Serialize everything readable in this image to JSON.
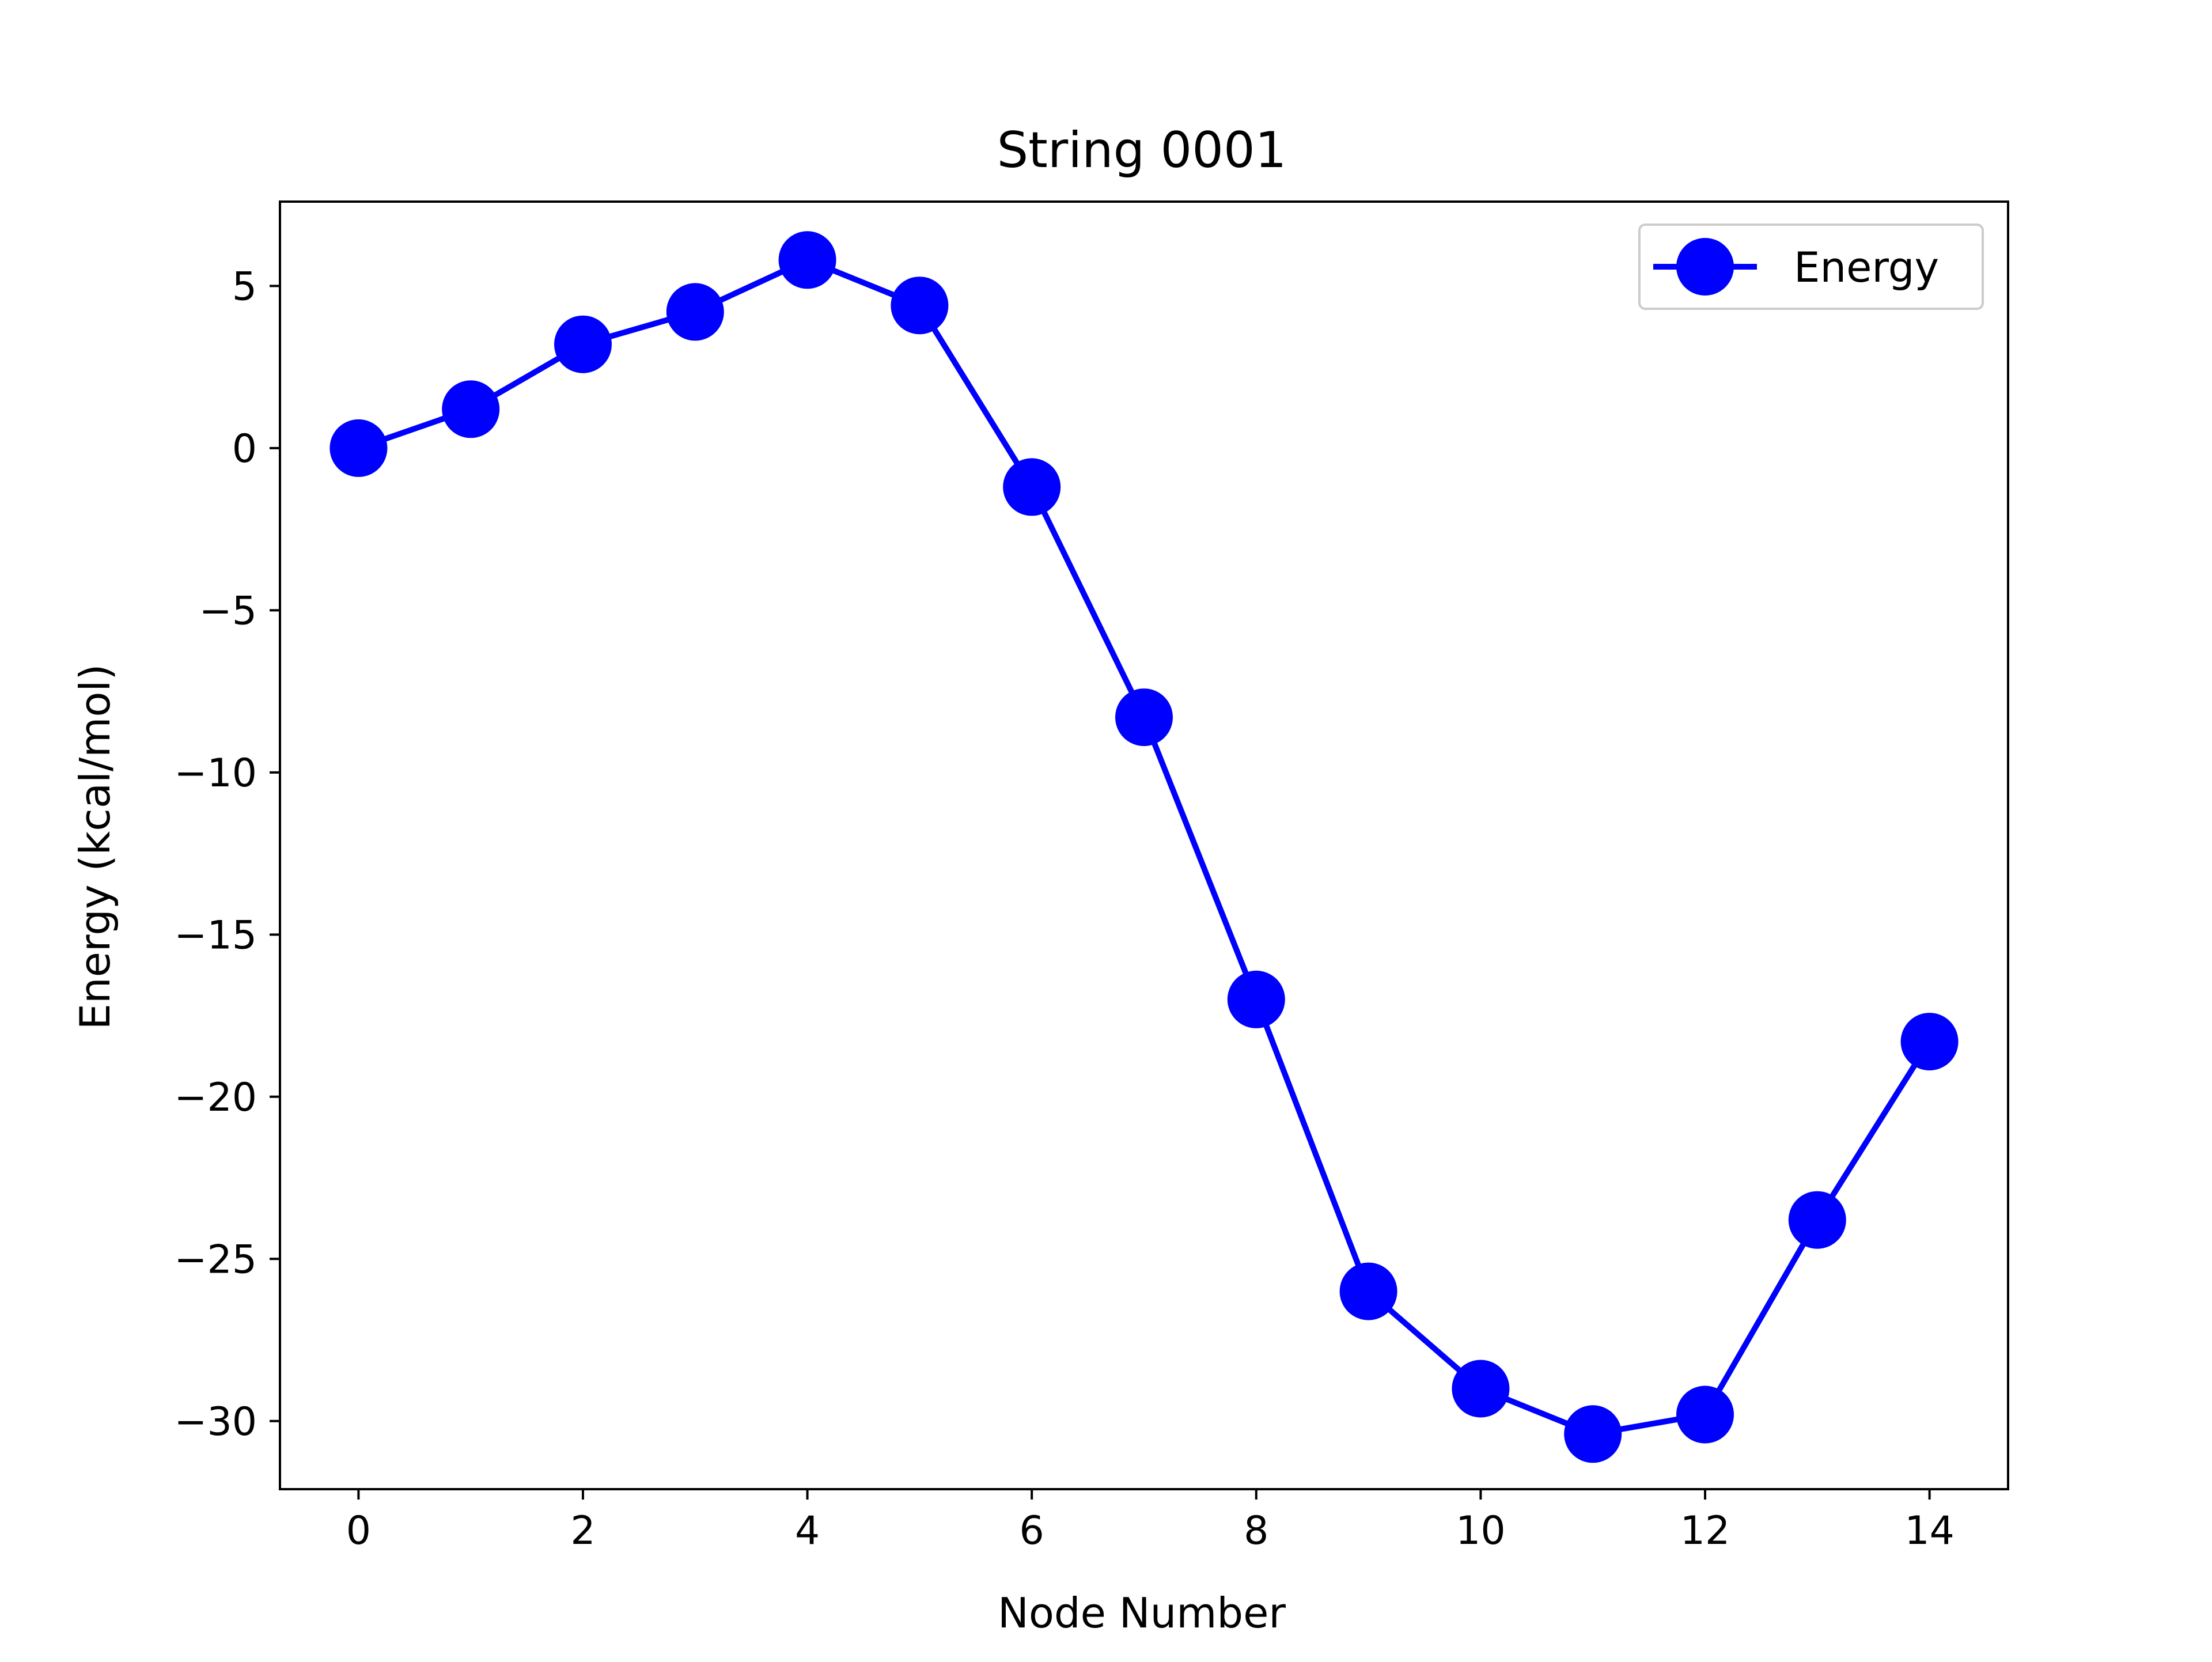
{
  "chart_data": {
    "type": "line",
    "title": "String 0001",
    "xlabel": "Node Number",
    "ylabel": "Energy (kcal/mol)",
    "xlim": [
      -0.7,
      14.7
    ],
    "ylim": [
      -32.1,
      7.6
    ],
    "xticks": [
      0,
      2,
      4,
      6,
      8,
      10,
      12,
      14
    ],
    "xtick_labels": [
      "0",
      "2",
      "4",
      "6",
      "8",
      "10",
      "12",
      "14"
    ],
    "yticks": [
      5,
      0,
      -5,
      -10,
      -15,
      -20,
      -25,
      -30
    ],
    "ytick_labels": [
      "5",
      "0",
      "−5",
      "−10",
      "−15",
      "−20",
      "−25",
      "−30"
    ],
    "grid": false,
    "legend_position": "top-right",
    "series": [
      {
        "name": "Energy",
        "color": "#0000ff",
        "marker": "circle",
        "x": [
          0,
          1,
          2,
          3,
          4,
          5,
          6,
          7,
          8,
          9,
          10,
          11,
          12,
          13,
          14
        ],
        "y": [
          0.0,
          1.2,
          3.2,
          4.2,
          5.8,
          4.4,
          -1.2,
          -8.3,
          -17.0,
          -26.0,
          -29.0,
          -30.4,
          -29.8,
          -23.8,
          -18.3
        ]
      }
    ]
  }
}
